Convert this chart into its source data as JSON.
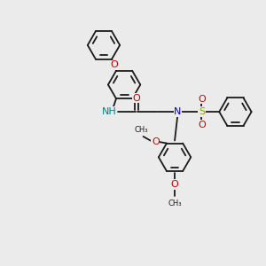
{
  "background_color": "#ebebeb",
  "bond_color": "#1a1a1a",
  "N_color": "#0000cc",
  "NH_color": "#008080",
  "O_color": "#cc0000",
  "S_color": "#999900",
  "atom_bg": "#ebebeb",
  "figsize": [
    3.0,
    3.0
  ],
  "dpi": 100,
  "lw": 1.3,
  "ring_r": 0.55,
  "xlim": [
    0,
    9
  ],
  "ylim": [
    0,
    9
  ]
}
